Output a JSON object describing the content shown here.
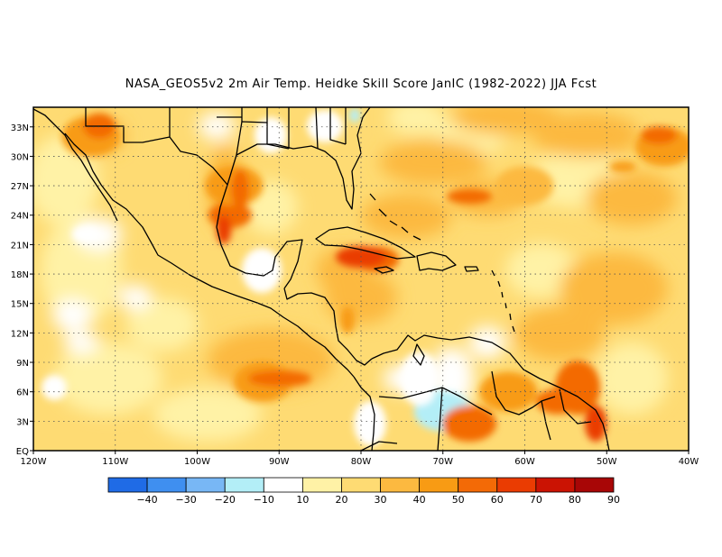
{
  "title": "NASA_GEOS5v2  2m Air Temp. Heidke Skill Score JanIC (1982-2022) JJA Fcst",
  "map": {
    "lon_range": [
      -120,
      -40
    ],
    "lat_range": [
      0,
      35
    ],
    "lat_ticks": [
      {
        "value": 0,
        "label": "EQ"
      },
      {
        "value": 3,
        "label": "3N"
      },
      {
        "value": 6,
        "label": "6N"
      },
      {
        "value": 9,
        "label": "9N"
      },
      {
        "value": 12,
        "label": "12N"
      },
      {
        "value": 15,
        "label": "15N"
      },
      {
        "value": 18,
        "label": "18N"
      },
      {
        "value": 21,
        "label": "21N"
      },
      {
        "value": 24,
        "label": "24N"
      },
      {
        "value": 27,
        "label": "27N"
      },
      {
        "value": 30,
        "label": "30N"
      },
      {
        "value": 33,
        "label": "33N"
      }
    ],
    "lon_ticks": [
      {
        "value": -120,
        "label": "120W"
      },
      {
        "value": -110,
        "label": "110W"
      },
      {
        "value": -100,
        "label": "100W"
      },
      {
        "value": -90,
        "label": "90W"
      },
      {
        "value": -80,
        "label": "80W"
      },
      {
        "value": -70,
        "label": "70W"
      },
      {
        "value": -60,
        "label": "60W"
      },
      {
        "value": -50,
        "label": "50W"
      },
      {
        "value": -40,
        "label": "40W"
      }
    ],
    "grid_lines": "dotted"
  },
  "colorbar": {
    "boundaries": [
      "-40",
      "-30",
      "-20",
      "-10",
      "10",
      "20",
      "30",
      "40",
      "50",
      "60",
      "70",
      "80",
      "90"
    ],
    "colors": [
      "#1f6be6",
      "#3f8ff0",
      "#78b7f5",
      "#b3eef7",
      "#ffffff",
      "#fff2a6",
      "#fedb73",
      "#fcb940",
      "#f89b14",
      "#f36a06",
      "#ea3c02",
      "#cb1303",
      "#a80606"
    ]
  },
  "skill_regions": [
    {
      "name": "gulf-of-mexico-west",
      "lon": -96,
      "lat": 24,
      "level": 4
    },
    {
      "name": "gulf-coast-texas",
      "lon": -95.5,
      "lat": 27,
      "level": 3
    },
    {
      "name": "baja-california-north",
      "lon": -113,
      "lat": 32,
      "level": 3
    },
    {
      "name": "cuba-caribbean",
      "lon": -78,
      "lat": 19.5,
      "level": 4
    },
    {
      "name": "eastern-pacific-warm-pool",
      "lon": -92,
      "lat": 7,
      "level": 3
    },
    {
      "name": "atlantic-northeast",
      "lon": -43,
      "lat": 31,
      "level": 3
    },
    {
      "name": "guiana-northeast-brazil",
      "lon": -56,
      "lat": 5,
      "level": 4
    },
    {
      "name": "venezuela-east",
      "lon": -62,
      "lat": 6,
      "level": 3
    },
    {
      "name": "central-atlantic",
      "lon": -60,
      "lat": 27,
      "level": 2
    },
    {
      "name": "colombia-west",
      "lon": -70,
      "lat": 4,
      "level": -1
    }
  ]
}
